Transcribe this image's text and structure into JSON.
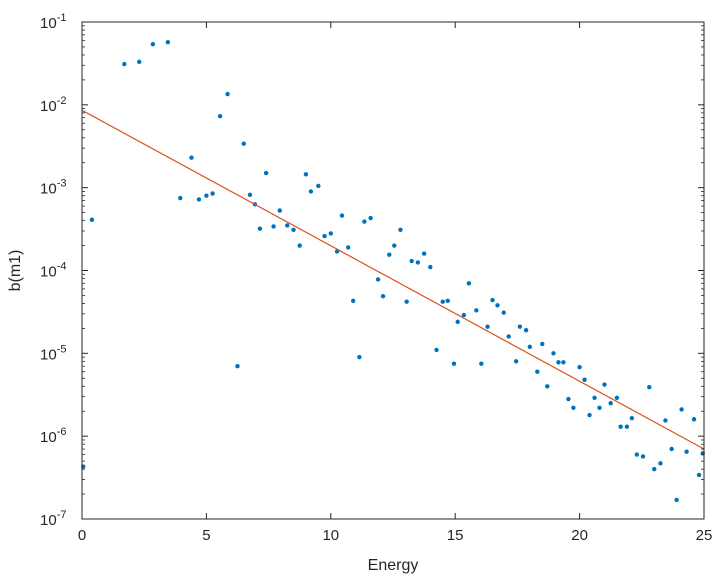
{
  "chart_data": {
    "type": "scatter",
    "xlabel": "Energy",
    "ylabel": "b(m1)",
    "xlim": [
      0,
      25
    ],
    "ylim": [
      1e-07,
      0.1
    ],
    "y_scale": "log",
    "grid": false,
    "x_ticks": [
      "0",
      "5",
      "10",
      "15",
      "20",
      "25"
    ],
    "y_ticks": [
      {
        "value": 1e-07,
        "base": "10",
        "exp": "-7"
      },
      {
        "value": 1e-06,
        "base": "10",
        "exp": "-6"
      },
      {
        "value": 1e-05,
        "base": "10",
        "exp": "-5"
      },
      {
        "value": 0.0001,
        "base": "10",
        "exp": "-4"
      },
      {
        "value": 0.001,
        "base": "10",
        "exp": "-3"
      },
      {
        "value": 0.01,
        "base": "10",
        "exp": "-2"
      },
      {
        "value": 0.1,
        "base": "10",
        "exp": "-1"
      }
    ],
    "series": [
      {
        "type": "scatter",
        "color": "#0072BD",
        "points": [
          [
            0.05,
            4.3e-07
          ],
          [
            0.4,
            0.00041
          ],
          [
            1.7,
            0.031
          ],
          [
            2.3,
            0.033
          ],
          [
            2.85,
            0.054
          ],
          [
            3.45,
            0.057
          ],
          [
            3.95,
            0.00075
          ],
          [
            4.4,
            0.0023
          ],
          [
            4.7,
            0.00072
          ],
          [
            5.0,
            0.0008
          ],
          [
            5.25,
            0.00085
          ],
          [
            5.55,
            0.0073
          ],
          [
            5.85,
            0.0135
          ],
          [
            6.25,
            7e-06
          ],
          [
            6.5,
            0.0034
          ],
          [
            6.75,
            0.00082
          ],
          [
            6.95,
            0.00063
          ],
          [
            7.15,
            0.00032
          ],
          [
            7.4,
            0.0015
          ],
          [
            7.7,
            0.00034
          ],
          [
            7.95,
            0.00053
          ],
          [
            8.25,
            0.00035
          ],
          [
            8.5,
            0.00031
          ],
          [
            8.75,
            0.0002
          ],
          [
            9.0,
            0.00145
          ],
          [
            9.2,
            0.0009
          ],
          [
            9.5,
            0.00105
          ],
          [
            9.75,
            0.00026
          ],
          [
            10.0,
            0.00028
          ],
          [
            10.25,
            0.00017
          ],
          [
            10.45,
            0.00046
          ],
          [
            10.7,
            0.00019
          ],
          [
            10.9,
            4.3e-05
          ],
          [
            11.15,
            9e-06
          ],
          [
            11.35,
            0.00039
          ],
          [
            11.6,
            0.00043
          ],
          [
            11.9,
            7.8e-05
          ],
          [
            12.1,
            4.9e-05
          ],
          [
            12.35,
            0.000155
          ],
          [
            12.55,
            0.0002
          ],
          [
            12.8,
            0.00031
          ],
          [
            13.05,
            4.2e-05
          ],
          [
            13.25,
            0.00013
          ],
          [
            13.5,
            0.000125
          ],
          [
            13.75,
            0.00016
          ],
          [
            14.0,
            0.00011
          ],
          [
            14.25,
            1.1e-05
          ],
          [
            14.5,
            4.2e-05
          ],
          [
            14.7,
            4.3e-05
          ],
          [
            14.95,
            7.5e-06
          ],
          [
            15.1,
            2.4e-05
          ],
          [
            15.35,
            2.9e-05
          ],
          [
            15.55,
            7e-05
          ],
          [
            15.85,
            3.3e-05
          ],
          [
            16.05,
            7.5e-06
          ],
          [
            16.3,
            2.1e-05
          ],
          [
            16.5,
            4.4e-05
          ],
          [
            16.7,
            3.8e-05
          ],
          [
            16.95,
            3.1e-05
          ],
          [
            17.15,
            1.6e-05
          ],
          [
            17.45,
            8e-06
          ],
          [
            17.6,
            2.1e-05
          ],
          [
            17.85,
            1.9e-05
          ],
          [
            18.0,
            1.2e-05
          ],
          [
            18.3,
            6e-06
          ],
          [
            18.5,
            1.3e-05
          ],
          [
            18.7,
            4e-06
          ],
          [
            18.95,
            1e-05
          ],
          [
            19.15,
            7.8e-06
          ],
          [
            19.35,
            7.8e-06
          ],
          [
            19.55,
            2.8e-06
          ],
          [
            19.75,
            2.2e-06
          ],
          [
            20.0,
            6.8e-06
          ],
          [
            20.2,
            4.8e-06
          ],
          [
            20.4,
            1.8e-06
          ],
          [
            20.6,
            2.9e-06
          ],
          [
            20.8,
            2.2e-06
          ],
          [
            21.0,
            4.2e-06
          ],
          [
            21.25,
            2.5e-06
          ],
          [
            21.5,
            2.9e-06
          ],
          [
            21.65,
            1.3e-06
          ],
          [
            21.9,
            1.3e-06
          ],
          [
            22.1,
            1.65e-06
          ],
          [
            22.3,
            6e-07
          ],
          [
            22.55,
            5.7e-07
          ],
          [
            22.8,
            3.9e-06
          ],
          [
            23.0,
            4e-07
          ],
          [
            23.25,
            4.7e-07
          ],
          [
            23.45,
            1.55e-06
          ],
          [
            23.7,
            7e-07
          ],
          [
            23.9,
            1.7e-07
          ],
          [
            24.1,
            2.1e-06
          ],
          [
            24.3,
            6.5e-07
          ],
          [
            24.6,
            1.6e-06
          ],
          [
            24.8,
            3.4e-07
          ],
          [
            24.95,
            6.2e-07
          ]
        ]
      },
      {
        "type": "line",
        "color": "#D95319",
        "points": [
          [
            0,
            0.0086
          ],
          [
            25,
            7e-07
          ]
        ]
      }
    ]
  }
}
